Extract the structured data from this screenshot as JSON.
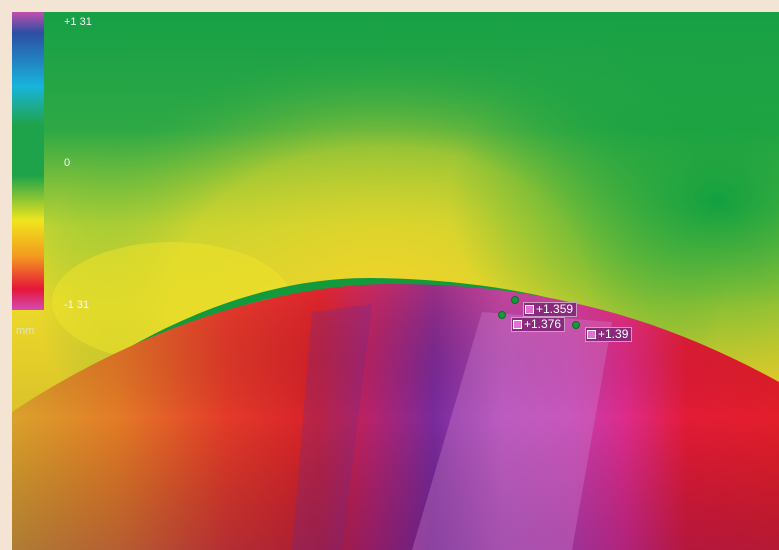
{
  "color_scale": {
    "max_label": "+1 31",
    "mid_label": "0",
    "min_label": "-1 31",
    "unit_label": "mm",
    "stops": [
      "#c24fae",
      "#2c4ea3",
      "#18b4dc",
      "#1fa34a",
      "#f0e51e",
      "#f39a1f",
      "#e5163a",
      "#d44bb4"
    ]
  },
  "surface_colors": {
    "background_green": "#1fa34a",
    "yellow": "#e7d92a",
    "red": "#e31d2a",
    "magenta": "#c93aa8",
    "purple": "#6a2ea0",
    "edge_band": "#129a3c"
  },
  "annotations": [
    {
      "label": "+1.359"
    },
    {
      "label": "+1.376"
    },
    {
      "label": "+1.39"
    }
  ]
}
